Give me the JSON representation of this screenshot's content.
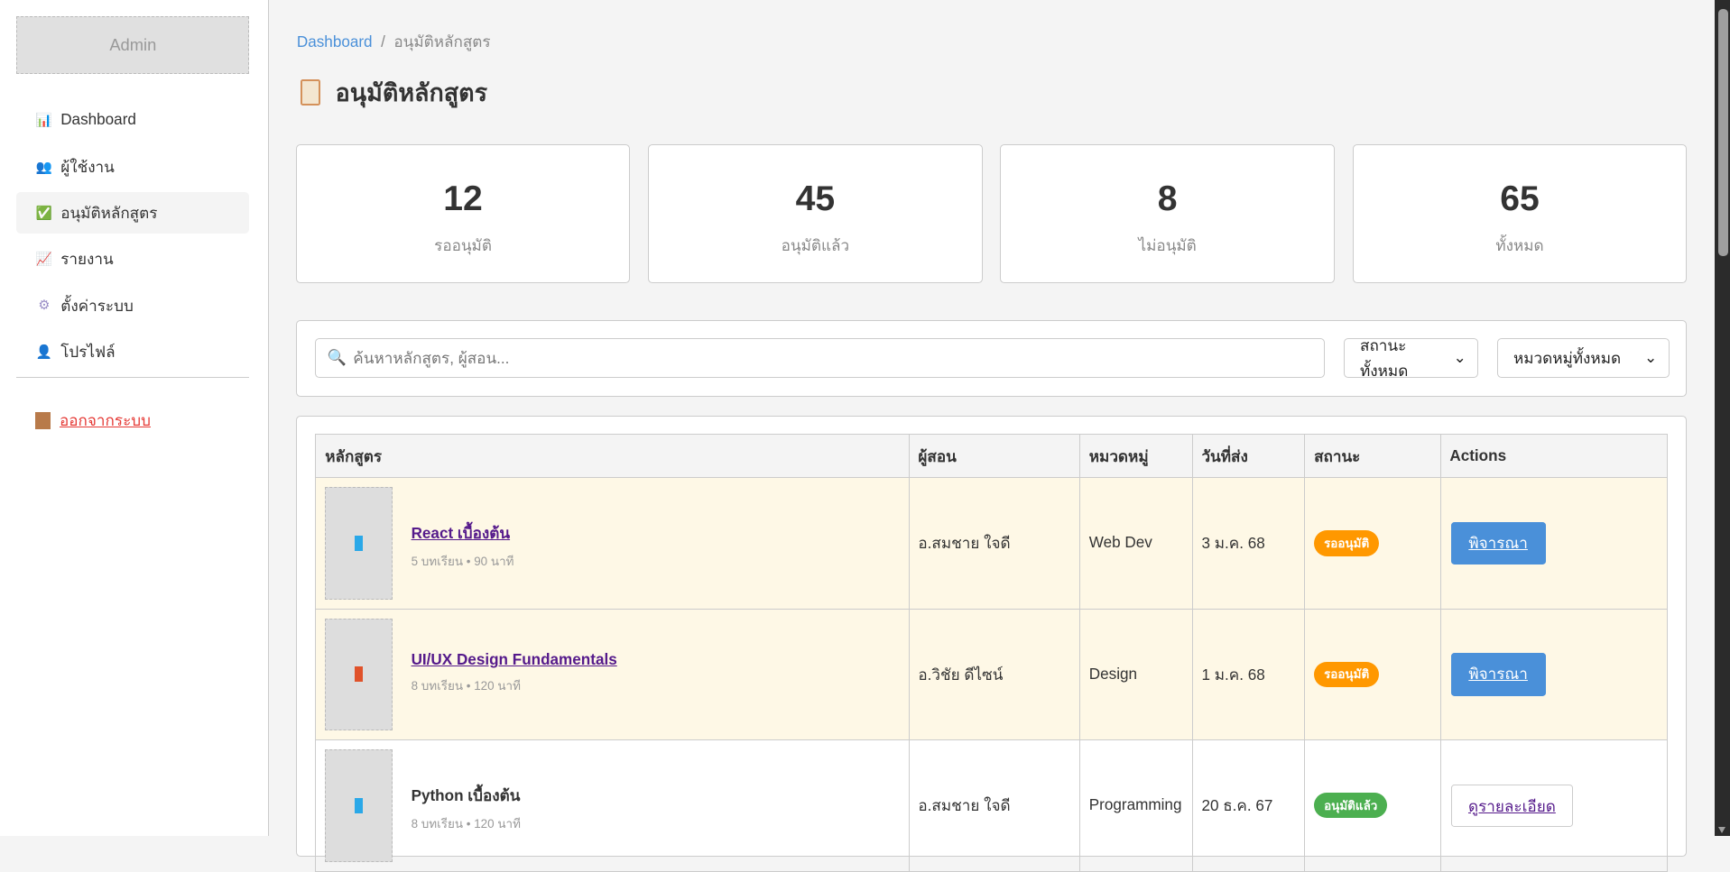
{
  "sidebar": {
    "logo": "Admin",
    "items": [
      {
        "label": "Dashboard",
        "icon": "bar-chart-icon",
        "glyph": "📊"
      },
      {
        "label": "ผู้ใช้งาน",
        "icon": "users-icon",
        "glyph": "👥"
      },
      {
        "label": "อนุมัติหลักสูตร",
        "icon": "check-icon",
        "glyph": "✅",
        "active": true
      },
      {
        "label": "รายงาน",
        "icon": "line-chart-icon",
        "glyph": "📈"
      },
      {
        "label": "ตั้งค่าระบบ",
        "icon": "gear-icon",
        "glyph": "⚙"
      },
      {
        "label": "โปรไฟล์",
        "icon": "user-icon",
        "glyph": "👤"
      }
    ],
    "logout": "ออกจากระบบ"
  },
  "breadcrumb": {
    "home": "Dashboard",
    "separator": "/",
    "current": "อนุมัติหลักสูตร"
  },
  "page_title": "อนุมัติหลักสูตร",
  "stats": [
    {
      "value": "12",
      "label": "รออนุมัติ"
    },
    {
      "value": "45",
      "label": "อนุมัติแล้ว"
    },
    {
      "value": "8",
      "label": "ไม่อนุมัติ"
    },
    {
      "value": "65",
      "label": "ทั้งหมด"
    }
  ],
  "filters": {
    "search_placeholder": "ค้นหาหลักสูตร, ผู้สอน...",
    "status_selected": "สถานะทั้งหมด",
    "category_selected": "หมวดหมู่ทั้งหมด"
  },
  "table": {
    "headers": [
      "หลักสูตร",
      "ผู้สอน",
      "หมวดหมู่",
      "วันที่ส่ง",
      "สถานะ",
      "Actions"
    ],
    "rows": [
      {
        "course": "React เบื้องต้น",
        "meta": "5 บทเรียน • 90 นาที",
        "instructor": "อ.สมชาย ใจดี",
        "category": "Web Dev",
        "date": "3 ม.ค. 68",
        "status": "รออนุมัติ",
        "action": "พิจารณา"
      },
      {
        "course": "UI/UX Design Fundamentals",
        "meta": "8 บทเรียน • 120 นาที",
        "instructor": "อ.วิชัย ดีไซน์",
        "category": "Design",
        "date": "1 ม.ค. 68",
        "status": "รออนุมัติ",
        "action": "พิจารณา"
      },
      {
        "course": "Python เบื้องต้น",
        "meta": "8 บทเรียน • 120 นาที",
        "instructor": "อ.สมชาย ใจดี",
        "category": "Programming",
        "date": "20 ธ.ค. 67",
        "status": "อนุมัติแล้ว",
        "action": "ดูรายละเอียด"
      }
    ]
  },
  "colors": {
    "accent": "#4a90d9",
    "pending": "#ff9800",
    "approved": "#4caf50",
    "logout": "#e53935",
    "pending_row": "#fef8e6"
  }
}
